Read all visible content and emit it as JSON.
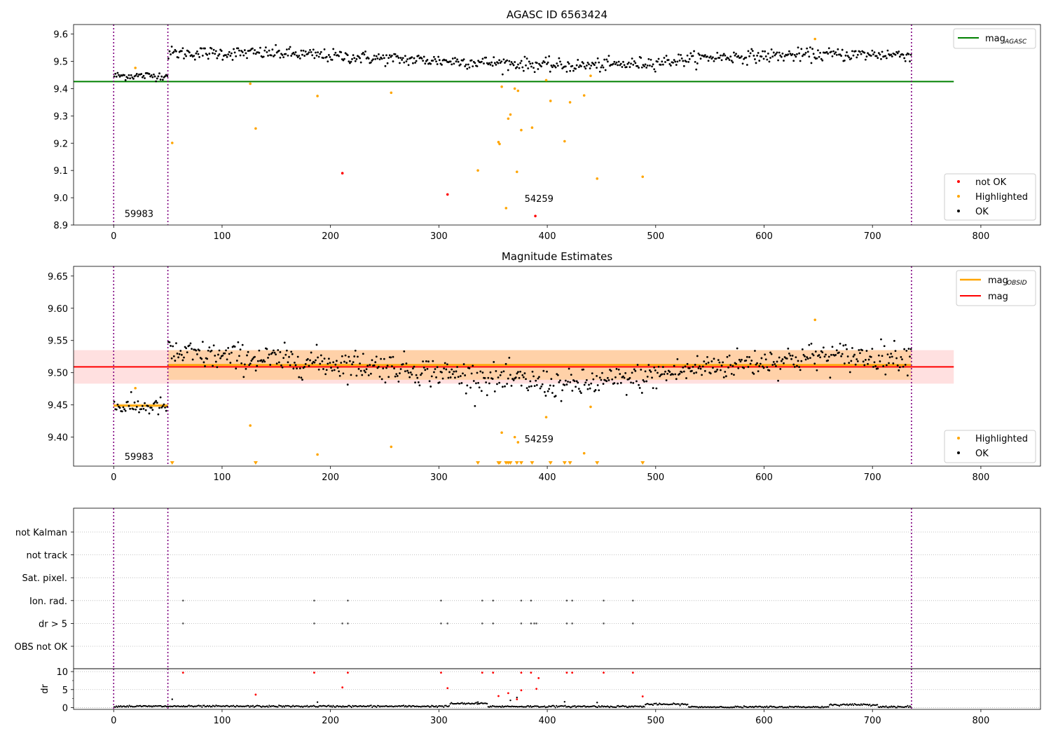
{
  "chart_data": [
    {
      "type": "scatter",
      "title": "AGASC ID 6563424",
      "xlim": [
        -37,
        855
      ],
      "ylim": [
        8.9,
        9.635
      ],
      "x_ticks": [
        0,
        100,
        200,
        300,
        400,
        500,
        600,
        700,
        800
      ],
      "y_ticks": [
        8.9,
        9.0,
        9.1,
        9.2,
        9.3,
        9.4,
        9.5,
        9.6
      ],
      "y_tick_labels": [
        "8.9",
        "9.0",
        "9.1",
        "9.2",
        "9.3",
        "9.4",
        "9.5",
        "9.6"
      ],
      "obsid_boundaries": [
        0,
        50,
        736
      ],
      "annotations": [
        {
          "text": "59983",
          "x": 10,
          "y": 8.93
        },
        {
          "text": "54259",
          "x": 379,
          "y": 8.985
        }
      ],
      "mag_agasc": {
        "name": "mag",
        "subscript": "AGASC",
        "value": 9.426,
        "x_range": [
          -37,
          775
        ]
      },
      "ok_segments": [
        {
          "x_range": [
            0,
            50
          ],
          "count": 48,
          "mean": 9.447,
          "spread": 0.011
        },
        {
          "x_range": [
            50,
            736
          ],
          "count": 672,
          "trend": [
            [
              50,
              9.53
            ],
            [
              150,
              9.53
            ],
            [
              250,
              9.51
            ],
            [
              350,
              9.495
            ],
            [
              420,
              9.483
            ],
            [
              480,
              9.49
            ],
            [
              550,
              9.515
            ],
            [
              650,
              9.525
            ],
            [
              736,
              9.525
            ]
          ],
          "spread": 0.017
        }
      ],
      "highlighted": [
        [
          20,
          9.476
        ],
        [
          54,
          9.201
        ],
        [
          126,
          9.418
        ],
        [
          131,
          9.254
        ],
        [
          188,
          9.373
        ],
        [
          256,
          9.385
        ],
        [
          336,
          9.1
        ],
        [
          355,
          9.204
        ],
        [
          356,
          9.197
        ],
        [
          358,
          9.407
        ],
        [
          362,
          8.962
        ],
        [
          364,
          9.29
        ],
        [
          366,
          9.305
        ],
        [
          370,
          9.4
        ],
        [
          372,
          9.095
        ],
        [
          373,
          9.392
        ],
        [
          376,
          9.248
        ],
        [
          386,
          9.257
        ],
        [
          399,
          9.431
        ],
        [
          403,
          9.355
        ],
        [
          416,
          9.207
        ],
        [
          421,
          9.35
        ],
        [
          434,
          9.375
        ],
        [
          440,
          9.447
        ],
        [
          446,
          9.07
        ],
        [
          488,
          9.077
        ],
        [
          647,
          9.582
        ]
      ],
      "not_ok": [
        [
          211,
          9.09
        ],
        [
          308,
          9.012
        ],
        [
          389,
          8.933
        ]
      ],
      "legend": {
        "placement": "lower right",
        "entries": [
          "not OK",
          "Highlighted",
          "OK"
        ],
        "line_entry": "mag",
        "line_entry_sub": "AGASC",
        "line_placement": "upper right"
      }
    },
    {
      "type": "scatter",
      "title": "Magnitude Estimates",
      "xlim": [
        -37,
        855
      ],
      "ylim": [
        9.355,
        9.665
      ],
      "x_ticks": [
        0,
        100,
        200,
        300,
        400,
        500,
        600,
        700,
        800
      ],
      "y_ticks": [
        9.4,
        9.45,
        9.5,
        9.55,
        9.6,
        9.65
      ],
      "y_tick_labels": [
        "9.40",
        "9.45",
        "9.50",
        "9.55",
        "9.60",
        "9.65"
      ],
      "obsid_boundaries": [
        0,
        50,
        736
      ],
      "annotations": [
        {
          "text": "59983",
          "x": 10,
          "y": 9.365
        },
        {
          "text": "54259",
          "x": 379,
          "y": 9.392
        }
      ],
      "mag": {
        "name": "mag",
        "value": 9.509,
        "band": [
          9.483,
          9.535
        ],
        "x_range": [
          -37,
          775
        ]
      },
      "mag_obsid": [
        {
          "x_range": [
            0,
            50
          ],
          "value": 9.449,
          "band": [
            9.446,
            9.452
          ]
        },
        {
          "x_range": [
            50,
            736
          ],
          "value": 9.512,
          "band": [
            9.489,
            9.535
          ]
        }
      ],
      "ok_segments": [
        {
          "x_range": [
            0,
            50
          ],
          "count": 48,
          "mean": 9.447,
          "spread": 0.01
        },
        {
          "x_range": [
            50,
            736
          ],
          "count": 672,
          "trend": [
            [
              50,
              9.53
            ],
            [
              150,
              9.52
            ],
            [
              250,
              9.51
            ],
            [
              350,
              9.49
            ],
            [
              420,
              9.48
            ],
            [
              480,
              9.49
            ],
            [
              550,
              9.51
            ],
            [
              650,
              9.525
            ],
            [
              736,
              9.525
            ]
          ],
          "spread": 0.016
        }
      ],
      "highlighted": [
        [
          20,
          9.476
        ],
        [
          126,
          9.418
        ],
        [
          188,
          9.373
        ],
        [
          256,
          9.385
        ],
        [
          358,
          9.407
        ],
        [
          370,
          9.4
        ],
        [
          373,
          9.392
        ],
        [
          399,
          9.431
        ],
        [
          434,
          9.375
        ],
        [
          440,
          9.447
        ],
        [
          647,
          9.582
        ]
      ],
      "below_range": [
        54,
        131,
        336,
        355,
        356,
        362,
        364,
        366,
        372,
        376,
        386,
        403,
        416,
        421,
        446,
        488
      ],
      "legend": {
        "placement": "lower right",
        "entries": [
          "Highlighted",
          "OK"
        ],
        "line_entries": [
          "mag",
          "mag"
        ],
        "line_entry_sub": "OBSID",
        "line_placement": "upper right"
      }
    },
    {
      "type": "scatter",
      "title": "",
      "xlim": [
        -37,
        855
      ],
      "categories": [
        "not Kalman",
        "not track",
        "Sat. pixel.",
        "Ion. rad.",
        "dr > 5",
        "OBS not OK"
      ],
      "obsid_boundaries": [
        0,
        50,
        736
      ],
      "flags": {
        "Ion. rad.": [
          64,
          185,
          216,
          302,
          340,
          350,
          376,
          385,
          418,
          423,
          452,
          479
        ],
        "dr > 5": [
          64,
          185,
          211,
          216,
          302,
          308,
          340,
          350,
          376,
          385,
          388,
          390,
          418,
          423,
          452,
          479
        ]
      }
    },
    {
      "type": "scatter",
      "title": "",
      "ylabel": "dr",
      "xlim": [
        -37,
        855
      ],
      "ylim": [
        -0.5,
        10.8
      ],
      "x_ticks": [
        0,
        100,
        200,
        300,
        400,
        500,
        600,
        700,
        800
      ],
      "y_ticks": [
        0,
        5,
        10
      ],
      "y_tick_labels": [
        "0",
        "5",
        "10"
      ],
      "obsid_boundaries": [
        0,
        50,
        736
      ],
      "baseline_segments": [
        [
          0,
          310,
          0.35
        ],
        [
          310,
          345,
          1.1
        ],
        [
          345,
          490,
          0.3
        ],
        [
          490,
          530,
          0.9
        ],
        [
          530,
          660,
          0.15
        ],
        [
          660,
          705,
          0.8
        ],
        [
          705,
          736,
          0.2
        ]
      ],
      "red_points": [
        [
          64,
          9.7
        ],
        [
          131,
          3.6
        ],
        [
          185,
          9.7
        ],
        [
          211,
          5.6
        ],
        [
          216,
          9.7
        ],
        [
          302,
          9.7
        ],
        [
          308,
          5.4
        ],
        [
          340,
          9.7
        ],
        [
          350,
          9.7
        ],
        [
          355,
          3.2
        ],
        [
          364,
          4.0
        ],
        [
          372,
          2.3
        ],
        [
          376,
          9.7
        ],
        [
          376,
          4.8
        ],
        [
          385,
          9.7
        ],
        [
          390,
          5.2
        ],
        [
          392,
          8.2
        ],
        [
          418,
          9.7
        ],
        [
          423,
          9.7
        ],
        [
          452,
          9.7
        ],
        [
          479,
          9.7
        ],
        [
          488,
          3.1
        ]
      ],
      "black_outliers": [
        [
          54,
          2.3
        ],
        [
          188,
          1.5
        ],
        [
          336,
          1.5
        ],
        [
          366,
          2.0
        ],
        [
          372,
          2.8
        ],
        [
          416,
          1.6
        ],
        [
          446,
          1.4
        ]
      ]
    }
  ]
}
